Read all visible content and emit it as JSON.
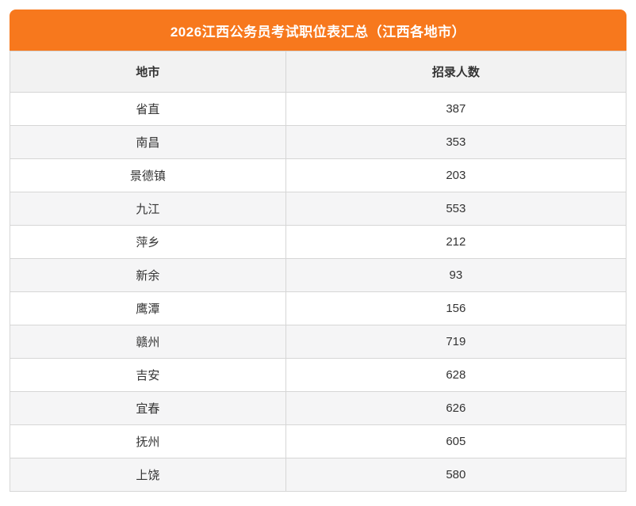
{
  "banner": {
    "title": "2026江西公务员考试职位表汇总（江西各地市）",
    "bg_color": "#f7781d",
    "text_color": "#ffffff"
  },
  "table": {
    "columns": {
      "city": "地市",
      "count": "招录人数"
    },
    "rows": [
      {
        "city": "省直",
        "count": "387"
      },
      {
        "city": "南昌",
        "count": "353"
      },
      {
        "city": "景德镇",
        "count": "203"
      },
      {
        "city": "九江",
        "count": "553"
      },
      {
        "city": "萍乡",
        "count": "212"
      },
      {
        "city": "新余",
        "count": "93"
      },
      {
        "city": "鹰潭",
        "count": "156"
      },
      {
        "city": "赣州",
        "count": "719"
      },
      {
        "city": "吉安",
        "count": "628"
      },
      {
        "city": "宜春",
        "count": "626"
      },
      {
        "city": "抚州",
        "count": "605"
      },
      {
        "city": "上饶",
        "count": "580"
      }
    ]
  },
  "chart_data": {
    "type": "table",
    "title": "2026江西公务员考试职位表汇总（江西各地市）",
    "columns": [
      "地市",
      "招录人数"
    ],
    "categories": [
      "省直",
      "南昌",
      "景德镇",
      "九江",
      "萍乡",
      "新余",
      "鹰潭",
      "赣州",
      "吉安",
      "宜春",
      "抚州",
      "上饶"
    ],
    "values": [
      387,
      353,
      203,
      553,
      212,
      93,
      156,
      719,
      628,
      626,
      605,
      580
    ]
  },
  "colors": {
    "accent_orange": "#f7781d",
    "header_row_bg": "#f2f2f2",
    "stripe_bg": "#f5f5f6",
    "border": "#d6d6d6",
    "text": "#333333"
  }
}
